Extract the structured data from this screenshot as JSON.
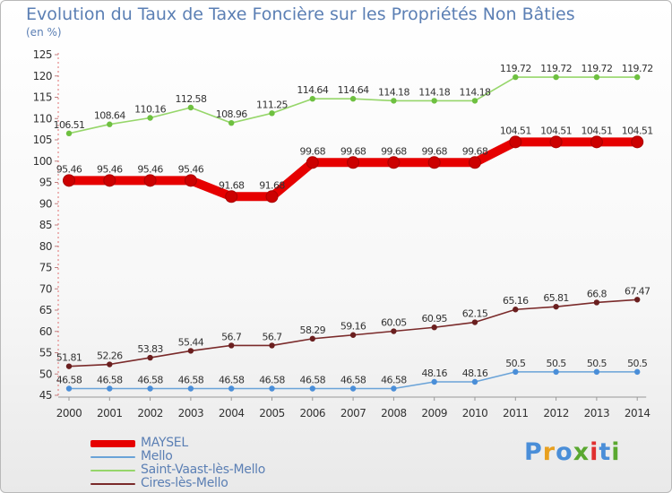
{
  "title": "Evolution du Taux de Taxe Foncière sur les Propriétés Non Bâties",
  "subtitle": "(en %)",
  "logo": {
    "text": "Proxiti",
    "letter_colors": [
      "#4a8ed8",
      "#e8a020",
      "#4a8ed8",
      "#5aa830",
      "#e03030",
      "#4a8ed8",
      "#5aa830"
    ]
  },
  "chart_data": {
    "type": "line",
    "title": "Evolution du Taux de Taxe Foncière sur les Propriétés Non Bâties",
    "ylabel": "(en %)",
    "xlabel": "",
    "x": [
      2000,
      2001,
      2002,
      2003,
      2004,
      2005,
      2006,
      2007,
      2008,
      2009,
      2010,
      2011,
      2012,
      2013,
      2014
    ],
    "ylim": [
      45,
      125
    ],
    "yticks": [
      45,
      50,
      55,
      60,
      65,
      70,
      75,
      80,
      85,
      90,
      95,
      100,
      105,
      110,
      115,
      120,
      125
    ],
    "grid": false,
    "legend_position": "bottom-left",
    "series": [
      {
        "name": "MAYSEL",
        "color": "#e60000",
        "marker_color": "#cc0000",
        "emphasis": true,
        "values": [
          95.46,
          95.46,
          95.46,
          95.46,
          91.68,
          91.68,
          99.68,
          99.68,
          99.68,
          99.68,
          99.68,
          104.51,
          104.51,
          104.51,
          104.51
        ],
        "labels": [
          "95.46",
          "95.46",
          "95.46",
          "95.46",
          "91.68",
          "91.68",
          "99.68",
          "99.68",
          "99.68",
          "99.68",
          "99.68",
          "104.51",
          "104.51",
          "104.51",
          "104.51"
        ]
      },
      {
        "name": "Mello",
        "color": "#6aa3d8",
        "marker_color": "#4a8ed8",
        "emphasis": false,
        "values": [
          46.58,
          46.58,
          46.58,
          46.58,
          46.58,
          46.58,
          46.58,
          46.58,
          46.58,
          48.16,
          48.16,
          50.5,
          50.5,
          50.5,
          50.5
        ],
        "labels": [
          "46.58",
          "46.58",
          "46.58",
          "46.58",
          "46.58",
          "46.58",
          "46.58",
          "46.58",
          "46.58",
          "48.16",
          "48.16",
          "50.5",
          "50.5",
          "50.5",
          "50.5"
        ]
      },
      {
        "name": "Saint-Vaast-lès-Mello",
        "color": "#96d66a",
        "marker_color": "#6ec040",
        "emphasis": false,
        "values": [
          106.51,
          108.64,
          110.16,
          112.58,
          108.96,
          111.25,
          114.64,
          114.64,
          114.18,
          114.18,
          114.18,
          119.72,
          119.72,
          119.72,
          119.72
        ],
        "labels": [
          "106.51",
          "108.64",
          "110.16",
          "112.58",
          "108.96",
          "111.25",
          "114.64",
          "114.64",
          "114.18",
          "114.18",
          "114.18",
          "119.72",
          "119.72",
          "119.72",
          "119.72"
        ]
      },
      {
        "name": "Cires-lès-Mello",
        "color": "#7a2a2a",
        "marker_color": "#6a1f1f",
        "emphasis": false,
        "values": [
          51.81,
          52.26,
          53.83,
          55.44,
          56.7,
          56.7,
          58.29,
          59.16,
          60.05,
          60.95,
          62.15,
          65.16,
          65.81,
          66.8,
          67.47
        ],
        "labels": [
          "51.81",
          "52.26",
          "53.83",
          "55.44",
          "56.7",
          "56.7",
          "58.29",
          "59.16",
          "60.05",
          "60.95",
          "62.15",
          "65.16",
          "65.81",
          "66.8",
          "67.47"
        ]
      }
    ]
  }
}
